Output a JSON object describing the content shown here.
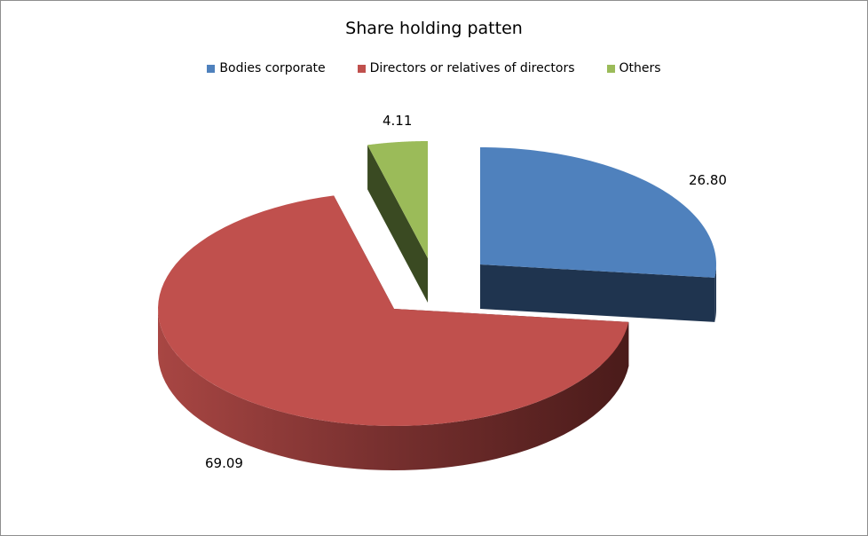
{
  "chart_data": {
    "type": "pie",
    "variant": "3d-exploded",
    "title": "Share holding patten",
    "legend_position": "top",
    "categories": [
      "Bodies corporate",
      "Directors or relatives of directors",
      "Others"
    ],
    "values": [
      26.8,
      69.09,
      4.11
    ],
    "data_labels": [
      "26.80",
      "69.09",
      "4.11"
    ],
    "colors": [
      "#4f81bd",
      "#c0504d",
      "#9bbb59"
    ],
    "side_colors": [
      "#1f344f",
      "#4a1b1a",
      "#3a4a22"
    ]
  }
}
